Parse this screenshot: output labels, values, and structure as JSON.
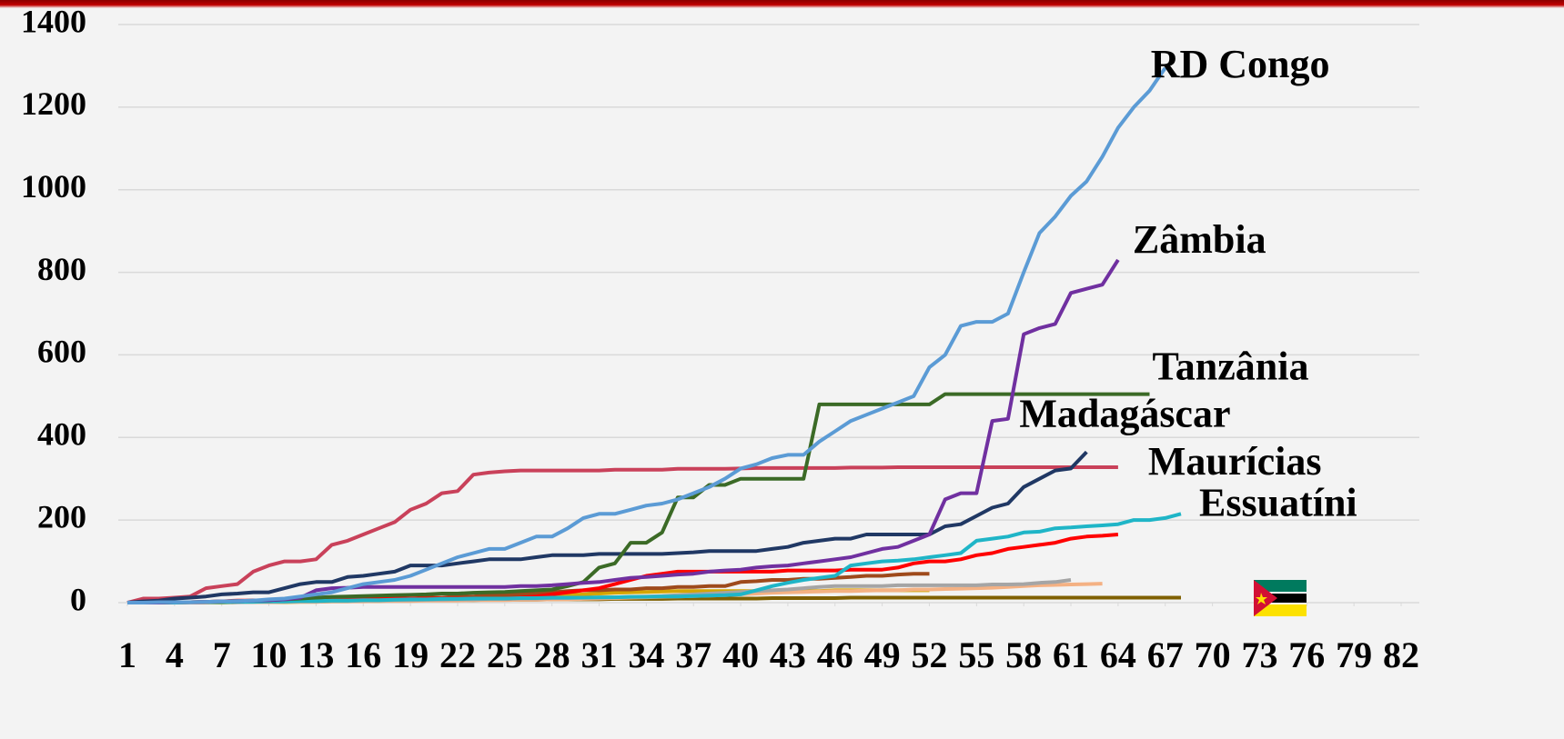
{
  "chart_data": {
    "type": "line",
    "x": [
      1,
      2,
      3,
      4,
      5,
      6,
      7,
      8,
      9,
      10,
      11,
      12,
      13,
      14,
      15,
      16,
      17,
      18,
      19,
      20,
      21,
      22,
      23,
      24,
      25,
      26,
      27,
      28,
      29,
      30,
      31,
      32,
      33,
      34,
      35,
      36,
      37,
      38,
      39,
      40,
      41,
      42,
      43,
      44,
      45,
      46,
      47,
      48,
      49,
      50,
      51,
      52,
      53,
      54,
      55,
      56,
      57,
      58,
      59,
      60,
      61,
      62,
      63,
      64,
      65,
      66,
      67,
      68
    ],
    "xlim": [
      1,
      82
    ],
    "xticks": [
      1,
      4,
      7,
      10,
      13,
      16,
      19,
      22,
      25,
      28,
      31,
      34,
      37,
      40,
      43,
      46,
      49,
      52,
      55,
      58,
      61,
      64,
      67,
      70,
      73,
      76,
      79,
      82
    ],
    "ylim": [
      0,
      1400
    ],
    "yticks": [
      0,
      200,
      400,
      600,
      800,
      1000,
      1200,
      1400
    ],
    "grid": true,
    "series": [
      {
        "name": "RD Congo",
        "color": "#5b9bd5",
        "values": [
          0,
          0,
          1,
          1,
          1,
          2,
          3,
          4,
          5,
          8,
          10,
          15,
          20,
          25,
          35,
          45,
          50,
          55,
          65,
          80,
          95,
          110,
          120,
          130,
          130,
          145,
          160,
          160,
          180,
          205,
          215,
          215,
          225,
          235,
          240,
          250,
          265,
          280,
          300,
          325,
          335,
          350,
          358,
          358,
          390,
          415,
          440,
          455,
          470,
          485,
          500,
          570,
          600,
          670,
          680,
          680,
          700,
          800,
          895,
          935,
          985,
          1020,
          1080,
          1150,
          1200,
          1240,
          1295,
          null
        ]
      },
      {
        "name": "Zâmbia",
        "color": "#7030a0",
        "values": [
          0,
          0,
          0,
          1,
          1,
          2,
          3,
          4,
          5,
          6,
          8,
          12,
          30,
          35,
          36,
          38,
          38,
          38,
          38,
          38,
          38,
          38,
          38,
          38,
          38,
          40,
          40,
          42,
          45,
          48,
          50,
          55,
          60,
          62,
          65,
          68,
          70,
          75,
          78,
          80,
          85,
          88,
          90,
          95,
          100,
          105,
          110,
          120,
          130,
          135,
          150,
          165,
          250,
          265,
          265,
          440,
          445,
          650,
          665,
          675,
          750,
          760,
          770,
          830,
          null,
          null,
          null,
          null
        ]
      },
      {
        "name": "Tanzânia",
        "color": "#3b6a26",
        "values": [
          0,
          0,
          0,
          1,
          1,
          2,
          3,
          4,
          5,
          6,
          8,
          10,
          12,
          14,
          15,
          16,
          17,
          18,
          19,
          20,
          22,
          22,
          24,
          25,
          26,
          28,
          30,
          32,
          40,
          50,
          85,
          95,
          145,
          145,
          170,
          255,
          255,
          285,
          285,
          300,
          300,
          300,
          300,
          300,
          480,
          480,
          480,
          480,
          480,
          480,
          480,
          480,
          505,
          505,
          505,
          505,
          505,
          505,
          505,
          505,
          505,
          505,
          505,
          505,
          505,
          505,
          null,
          null
        ]
      },
      {
        "name": "Madagáscar",
        "color": "#203864",
        "values": [
          0,
          3,
          5,
          10,
          12,
          15,
          20,
          22,
          25,
          25,
          35,
          45,
          50,
          50,
          62,
          65,
          70,
          75,
          90,
          90,
          90,
          95,
          100,
          105,
          105,
          105,
          110,
          115,
          115,
          115,
          118,
          118,
          118,
          118,
          118,
          120,
          122,
          125,
          125,
          125,
          125,
          130,
          135,
          145,
          150,
          155,
          155,
          165,
          165,
          165,
          165,
          165,
          185,
          190,
          210,
          230,
          240,
          280,
          300,
          320,
          325,
          365,
          null,
          null,
          null,
          null,
          null,
          null
        ]
      },
      {
        "name": "Maurícias",
        "color": "#c9415a",
        "values": [
          0,
          10,
          10,
          12,
          15,
          35,
          40,
          45,
          75,
          90,
          100,
          100,
          105,
          140,
          150,
          165,
          180,
          195,
          225,
          240,
          265,
          270,
          310,
          315,
          318,
          320,
          320,
          320,
          320,
          320,
          320,
          322,
          322,
          322,
          322,
          324,
          324,
          324,
          324,
          325,
          326,
          326,
          326,
          326,
          326,
          326,
          327,
          327,
          327,
          328,
          328,
          328,
          328,
          328,
          328,
          328,
          328,
          328,
          328,
          328,
          328,
          328,
          328,
          328,
          null,
          null,
          null,
          null
        ]
      },
      {
        "name": "Essuatíni",
        "color": "#1fb5c7",
        "values": [
          0,
          0,
          0,
          0,
          1,
          1,
          1,
          2,
          2,
          3,
          3,
          4,
          4,
          5,
          5,
          6,
          6,
          7,
          8,
          8,
          9,
          9,
          10,
          10,
          10,
          11,
          11,
          12,
          12,
          12,
          13,
          13,
          14,
          14,
          15,
          15,
          16,
          17,
          18,
          20,
          30,
          40,
          48,
          55,
          60,
          65,
          90,
          95,
          100,
          102,
          105,
          110,
          115,
          120,
          150,
          155,
          160,
          170,
          172,
          180,
          182,
          185,
          187,
          190,
          200,
          200,
          205,
          215
        ]
      },
      {
        "color": "#ff0000",
        "values": [
          0,
          0,
          0,
          1,
          1,
          2,
          3,
          5,
          5,
          6,
          7,
          8,
          8,
          8,
          9,
          10,
          10,
          10,
          10,
          10,
          10,
          10,
          10,
          10,
          10,
          12,
          15,
          20,
          25,
          30,
          35,
          45,
          55,
          65,
          70,
          75,
          75,
          75,
          75,
          75,
          75,
          75,
          78,
          78,
          78,
          78,
          80,
          80,
          80,
          85,
          95,
          100,
          100,
          105,
          115,
          120,
          130,
          135,
          140,
          145,
          155,
          160,
          162,
          165,
          null,
          null,
          null,
          null
        ]
      },
      {
        "color": "#9e4a1c",
        "values": [
          0,
          0,
          0,
          0,
          1,
          1,
          2,
          2,
          3,
          3,
          4,
          5,
          5,
          6,
          6,
          8,
          8,
          10,
          10,
          12,
          12,
          15,
          15,
          18,
          18,
          20,
          22,
          25,
          28,
          30,
          30,
          32,
          32,
          35,
          35,
          38,
          38,
          40,
          40,
          50,
          52,
          55,
          55,
          58,
          58,
          60,
          62,
          65,
          65,
          68,
          70,
          70,
          null,
          null,
          null,
          null,
          null,
          null,
          null,
          null,
          null,
          null,
          null,
          null,
          null,
          null,
          null,
          null
        ]
      },
      {
        "color": "#a5a5a5",
        "values": [
          0,
          0,
          0,
          0,
          0,
          1,
          1,
          1,
          2,
          2,
          2,
          3,
          3,
          4,
          4,
          5,
          5,
          6,
          6,
          7,
          7,
          8,
          8,
          9,
          9,
          10,
          10,
          11,
          11,
          12,
          12,
          13,
          14,
          15,
          16,
          18,
          20,
          22,
          24,
          26,
          28,
          30,
          32,
          35,
          38,
          40,
          40,
          40,
          40,
          42,
          42,
          42,
          42,
          42,
          42,
          44,
          44,
          45,
          48,
          50,
          55,
          null,
          null,
          null,
          null,
          null,
          null,
          null
        ]
      },
      {
        "color": "#f4b183",
        "values": [
          0,
          0,
          0,
          0,
          0,
          0,
          1,
          1,
          1,
          1,
          2,
          2,
          2,
          3,
          3,
          3,
          4,
          4,
          4,
          5,
          5,
          5,
          6,
          6,
          6,
          7,
          7,
          8,
          8,
          9,
          10,
          11,
          12,
          13,
          14,
          15,
          16,
          17,
          18,
          20,
          22,
          24,
          25,
          26,
          27,
          28,
          28,
          29,
          30,
          30,
          32,
          32,
          33,
          34,
          35,
          36,
          38,
          40,
          42,
          43,
          44,
          45,
          46,
          null,
          null,
          null,
          null,
          null
        ]
      },
      {
        "color": "#d4a600",
        "values": [
          0,
          0,
          0,
          0,
          0,
          0,
          0,
          1,
          1,
          1,
          1,
          2,
          2,
          3,
          3,
          4,
          4,
          5,
          5,
          6,
          6,
          7,
          8,
          9,
          10,
          12,
          14,
          16,
          18,
          20,
          22,
          24,
          25,
          26,
          27,
          28,
          28,
          28,
          28,
          28,
          28,
          28,
          28,
          28,
          28,
          30,
          30,
          30,
          30,
          30,
          30,
          30,
          null,
          null,
          null,
          null,
          null,
          null,
          null,
          null,
          null,
          null,
          null,
          null,
          null,
          null,
          null,
          null
        ]
      },
      {
        "color": "#7f6000",
        "values": [
          0,
          0,
          0,
          1,
          1,
          1,
          2,
          2,
          2,
          3,
          3,
          3,
          4,
          4,
          4,
          5,
          5,
          5,
          5,
          6,
          6,
          6,
          6,
          7,
          7,
          7,
          7,
          8,
          8,
          8,
          8,
          9,
          9,
          9,
          9,
          10,
          10,
          10,
          10,
          10,
          10,
          11,
          11,
          11,
          11,
          11,
          12,
          12,
          12,
          12,
          12,
          12,
          12,
          12,
          12,
          12,
          12,
          12,
          12,
          12,
          12,
          12,
          12,
          12,
          12,
          12,
          12,
          12
        ]
      }
    ]
  }
}
